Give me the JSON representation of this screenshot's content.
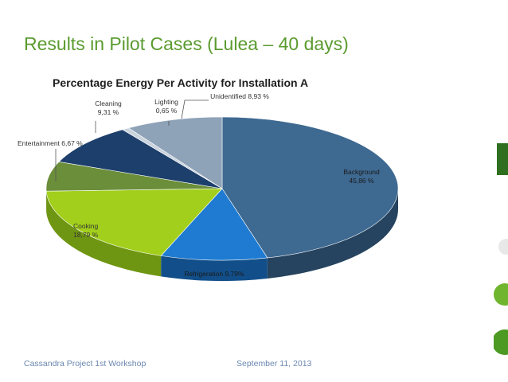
{
  "slide": {
    "title": "Results in Pilot Cases (Lulea – 40 days)"
  },
  "footer": {
    "left": "Cassandra Project 1st Workshop",
    "right": "September 11, 2013"
  },
  "colors": {
    "title_green": "#5b9b2f",
    "footer_blue": "#6b87b0"
  },
  "chart_data": {
    "type": "pie",
    "title": "Percentage Energy Per Activity for Installation A",
    "unit": "%",
    "slices": [
      {
        "name": "Background",
        "value": 45.86,
        "label_line1": "Background",
        "label_line2": "45,86 %",
        "color": "#3e6991",
        "side": "#26445f"
      },
      {
        "name": "Refrigeration",
        "value": 9.79,
        "label_line1": "Refrigeration  9,79%",
        "label_line2": "",
        "color": "#1f7bd1",
        "side": "#124f8a"
      },
      {
        "name": "Cooking",
        "value": 18.79,
        "label_line1": "Cooking",
        "label_line2": "18,79 %",
        "color": "#a2cf1c",
        "side": "#6f9612"
      },
      {
        "name": "Entertainment",
        "value": 6.67,
        "label_line1": "Entertainment  6,67 %",
        "label_line2": "",
        "color": "#6b8e3a",
        "side": "#465e25"
      },
      {
        "name": "Cleaning",
        "value": 9.31,
        "label_line1": "Cleaning",
        "label_line2": "9,31 %",
        "color": "#1d3f6c",
        "side": "#122846"
      },
      {
        "name": "Lighting",
        "value": 0.65,
        "label_line1": "Lighting",
        "label_line2": "0,65 %",
        "color": "#c9d3de",
        "side": "#8d98a4"
      },
      {
        "name": "Unidentified",
        "value": 8.93,
        "label_line1": "Unidentified 8,93 %",
        "label_line2": "",
        "color": "#8ea2b8",
        "side": "#5e7084"
      }
    ]
  }
}
